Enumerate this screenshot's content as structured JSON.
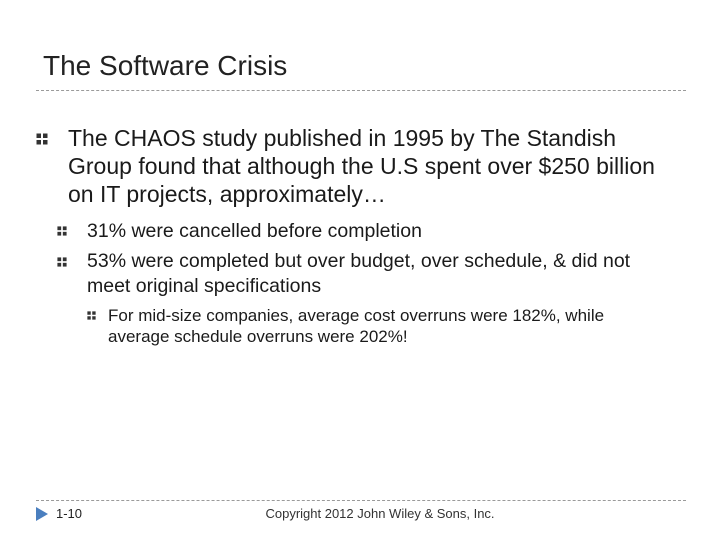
{
  "slide": {
    "title": "The Software Crisis",
    "bullets": {
      "main": "The CHAOS study published in 1995 by The Standish Group found that although the U.S spent over $250 billion on IT projects, approximately…",
      "sub1": "31% were cancelled before completion",
      "sub2": "53% were completed but over budget, over schedule, & did not meet original specifications",
      "subsub1": "For mid-size companies, average cost overruns were 182%, while average schedule overruns were 202%!"
    },
    "slide_number": "1-10",
    "footer": "Copyright 2012 John Wiley & Sons, Inc."
  },
  "colors": {
    "accent": "#4a7fbf",
    "bullet": "#333333"
  },
  "icons": {
    "bullet": "quad-diamond-bullet-icon",
    "slide_marker": "triangle-marker-icon"
  }
}
